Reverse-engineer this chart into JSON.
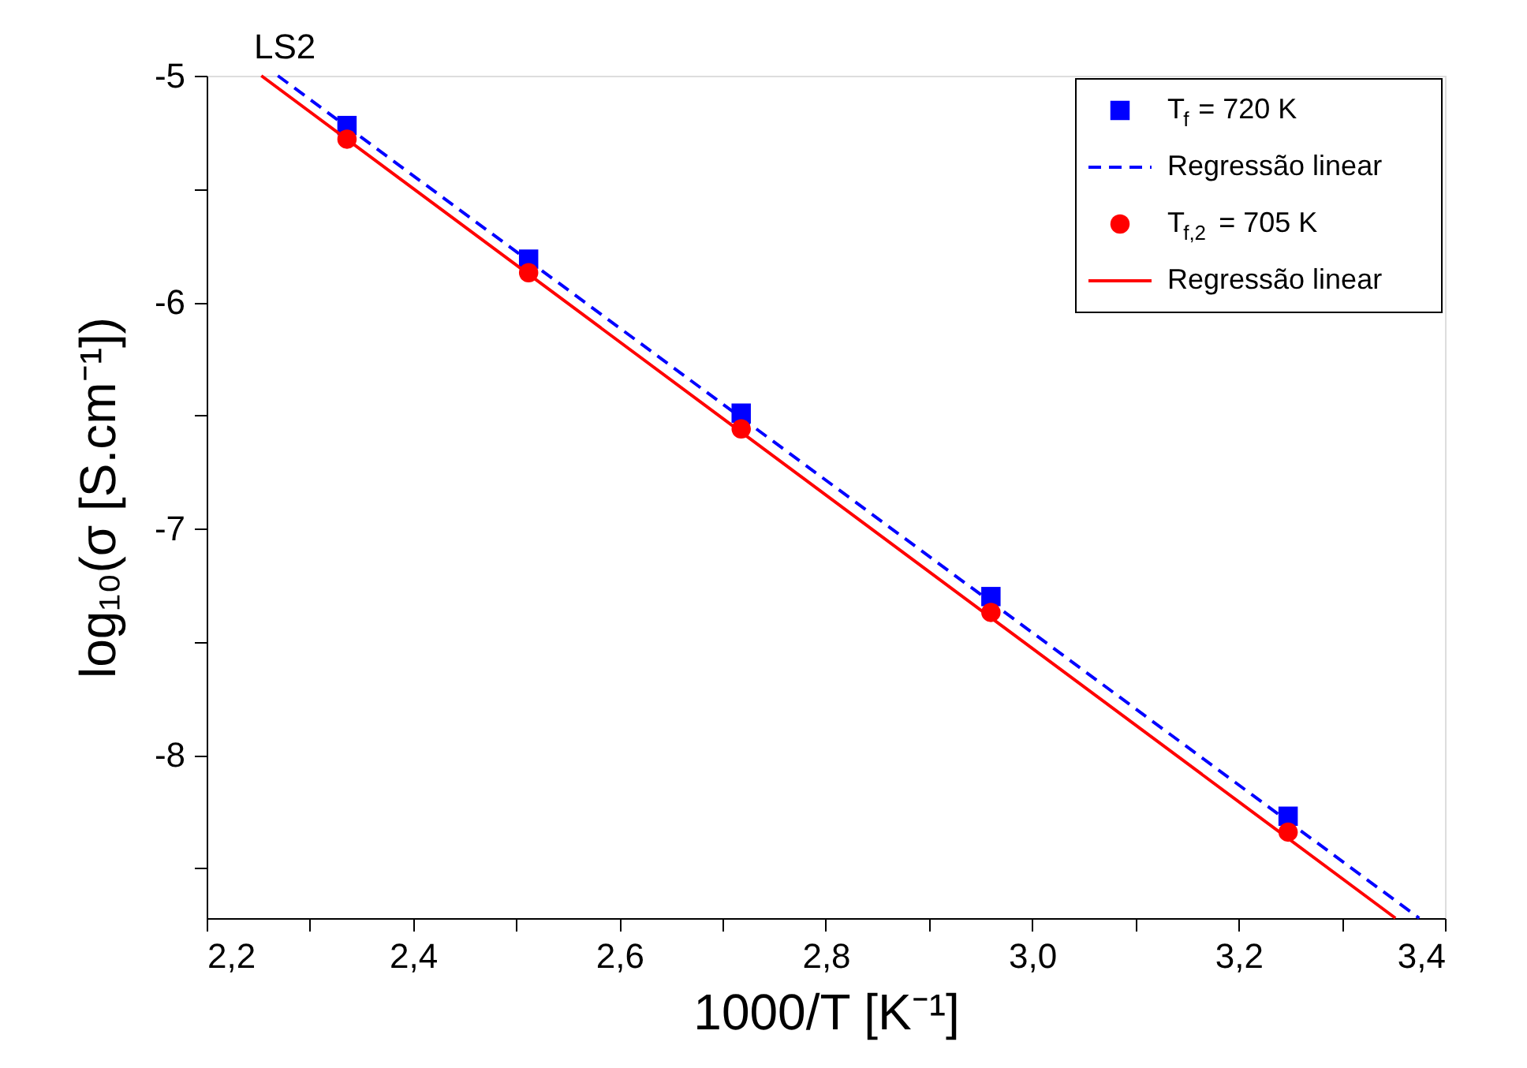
{
  "chart_data": {
    "type": "scatter",
    "xlabel": "1000/T [K⁻¹]",
    "ylabel": "log₁₀(σ [S.cm⁻¹])",
    "annotations": [
      "LS2"
    ],
    "xlim": [
      2.2,
      3.4
    ],
    "ylim": [
      -8.72,
      -5
    ],
    "xticks": [
      {
        "value": 2.2,
        "label": "2,2"
      },
      {
        "value": 2.3,
        "label": null
      },
      {
        "value": 2.4,
        "label": "2,4"
      },
      {
        "value": 2.5,
        "label": null
      },
      {
        "value": 2.6,
        "label": "2,6"
      },
      {
        "value": 2.7,
        "label": null
      },
      {
        "value": 2.8,
        "label": "2,8"
      },
      {
        "value": 2.9,
        "label": null
      },
      {
        "value": 3.0,
        "label": "3,0"
      },
      {
        "value": 3.1,
        "label": null
      },
      {
        "value": 3.2,
        "label": "3,2"
      },
      {
        "value": 3.3,
        "label": null
      },
      {
        "value": 3.4,
        "label": "3,4"
      }
    ],
    "yticks": [
      -5,
      {
        "value": -5.5,
        "label": null
      },
      -6,
      {
        "value": -6.5,
        "label": null
      },
      -7,
      {
        "value": -7.5,
        "label": null
      },
      -8,
      {
        "value": -8.5,
        "label": null
      }
    ],
    "grid": false,
    "legend": "top right",
    "series": [
      {
        "name": "T$_{f}$ = 720 K",
        "type": "scatter",
        "marker": "square",
        "color": "#0000ff",
        "x": [
          2.336,
          2.512,
          2.718,
          2.96,
          3.248
        ],
        "values": [
          -5.22,
          -5.81,
          -6.49,
          -7.3,
          -8.27
        ]
      },
      {
        "name": "Regressão linear",
        "type": "line",
        "line_style": "dashed",
        "color": "#0000ff",
        "x": [
          2.269,
          3.375
        ],
        "values": [
          -5,
          -8.72
        ]
      },
      {
        "name": "T$_{f,2}$ = 705 K",
        "type": "scatter",
        "marker": "circle",
        "color": "#ff0000",
        "x": [
          2.336,
          2.512,
          2.718,
          2.96,
          3.248
        ],
        "values": [
          -5.28,
          -5.87,
          -6.56,
          -7.37,
          -8.34
        ]
      },
      {
        "name": "Regressão linear",
        "type": "line",
        "line_style": "solid",
        "color": "#ff0000",
        "x": [
          2.253,
          3.352
        ],
        "values": [
          -5,
          -8.72
        ]
      }
    ]
  }
}
